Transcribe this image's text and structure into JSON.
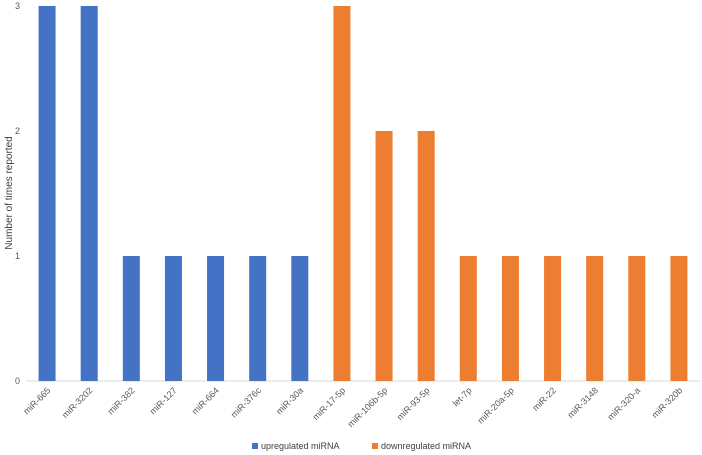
{
  "chart_data": {
    "type": "bar",
    "title": "",
    "xlabel": "",
    "ylabel": "Number of times reported",
    "ylim": [
      0,
      3
    ],
    "yticks": [
      0,
      1,
      2,
      3
    ],
    "grid": false,
    "legend_position": "bottom",
    "categories": [
      "miR-665",
      "miR-3202",
      "miR-382",
      "miR-127",
      "miR-664",
      "miR-376c",
      "miR-30a",
      "miR-17-5p",
      "miR-106b-5p",
      "miR-93-5p",
      "let-7p",
      "miR-20a-5p",
      "miR-22",
      "miR-3148",
      "miR-320-a",
      "miR-320b"
    ],
    "series": [
      {
        "name": "upregulated miRNA",
        "color": "#4472C4",
        "values": [
          3,
          3,
          1,
          1,
          1,
          1,
          1,
          null,
          null,
          null,
          null,
          null,
          null,
          null,
          null,
          null
        ]
      },
      {
        "name": "downregulated miRNA",
        "color": "#ED7D31",
        "values": [
          null,
          null,
          null,
          null,
          null,
          null,
          null,
          3,
          2,
          2,
          1,
          1,
          1,
          1,
          1,
          1
        ]
      }
    ]
  }
}
